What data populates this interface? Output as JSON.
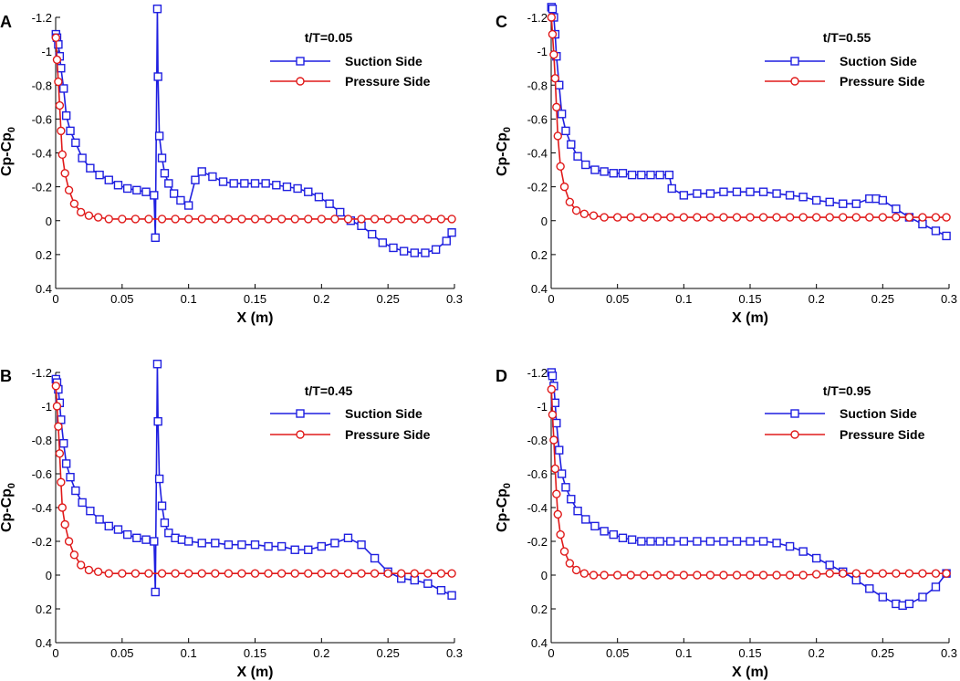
{
  "figure": {
    "series_styles": [
      {
        "key": "suction",
        "color": "#1f1fe0",
        "marker": "square"
      },
      {
        "key": "pressure",
        "color": "#e01a1a",
        "marker": "circle"
      }
    ]
  },
  "chart_data": [
    {
      "type": "line",
      "panel": "A",
      "title": "t/T=0.05",
      "xlabel": "X (m)",
      "ylabel": "Cp-Cp",
      "ylabel_sub": "0",
      "xlim": [
        0,
        0.3
      ],
      "ylim": [
        0.4,
        -1.2
      ],
      "xticks": [
        0,
        0.05,
        0.1,
        0.15,
        0.2,
        0.25,
        0.3
      ],
      "xtick_labels": [
        "0",
        "0.05",
        "0.1",
        "0.15",
        "0.2",
        "0.25",
        "0.3"
      ],
      "yticks": [
        -1.2,
        -1,
        -0.8,
        -0.6,
        -0.4,
        -0.2,
        0,
        0.2,
        0.4
      ],
      "ytick_labels": [
        "-1.2",
        "-1",
        "-0.8",
        "-0.6",
        "-0.4",
        "-0.2",
        "0",
        "0.2",
        "0.4"
      ],
      "series": [
        {
          "name": "Suction Side",
          "x": [
            0.0002,
            0.001,
            0.002,
            0.003,
            0.004,
            0.006,
            0.008,
            0.011,
            0.015,
            0.02,
            0.026,
            0.033,
            0.04,
            0.047,
            0.054,
            0.061,
            0.068,
            0.074,
            0.075,
            0.0765,
            0.077,
            0.078,
            0.08,
            0.082,
            0.085,
            0.089,
            0.094,
            0.1,
            0.105,
            0.11,
            0.118,
            0.126,
            0.134,
            0.142,
            0.15,
            0.158,
            0.166,
            0.174,
            0.182,
            0.19,
            0.198,
            0.206,
            0.214,
            0.222,
            0.23,
            0.238,
            0.246,
            0.254,
            0.262,
            0.27,
            0.278,
            0.286,
            0.294,
            0.298
          ],
          "y": [
            -1.1,
            -1.08,
            -1.04,
            -0.97,
            -0.9,
            -0.78,
            -0.62,
            -0.53,
            -0.46,
            -0.37,
            -0.31,
            -0.27,
            -0.24,
            -0.21,
            -0.19,
            -0.18,
            -0.17,
            -0.15,
            0.1,
            -1.25,
            -0.85,
            -0.5,
            -0.37,
            -0.28,
            -0.22,
            -0.16,
            -0.12,
            -0.09,
            -0.24,
            -0.29,
            -0.26,
            -0.23,
            -0.22,
            -0.22,
            -0.22,
            -0.22,
            -0.21,
            -0.2,
            -0.19,
            -0.17,
            -0.14,
            -0.1,
            -0.05,
            0.0,
            0.03,
            0.08,
            0.13,
            0.16,
            0.18,
            0.19,
            0.19,
            0.17,
            0.12,
            0.07
          ]
        },
        {
          "name": "Pressure Side",
          "x": [
            0.0002,
            0.001,
            0.002,
            0.003,
            0.004,
            0.005,
            0.007,
            0.01,
            0.014,
            0.019,
            0.025,
            0.032,
            0.04,
            0.05,
            0.06,
            0.07,
            0.08,
            0.09,
            0.1,
            0.11,
            0.12,
            0.13,
            0.14,
            0.15,
            0.16,
            0.17,
            0.18,
            0.19,
            0.2,
            0.21,
            0.22,
            0.23,
            0.24,
            0.25,
            0.26,
            0.27,
            0.28,
            0.29,
            0.298
          ],
          "y": [
            -1.08,
            -0.95,
            -0.82,
            -0.68,
            -0.53,
            -0.39,
            -0.28,
            -0.18,
            -0.1,
            -0.05,
            -0.03,
            -0.02,
            -0.01,
            -0.01,
            -0.01,
            -0.01,
            -0.01,
            -0.01,
            -0.01,
            -0.01,
            -0.01,
            -0.01,
            -0.01,
            -0.01,
            -0.01,
            -0.01,
            -0.01,
            -0.01,
            -0.01,
            -0.01,
            -0.01,
            -0.01,
            -0.01,
            -0.01,
            -0.01,
            -0.01,
            -0.01,
            -0.01,
            -0.01
          ]
        }
      ]
    },
    {
      "type": "line",
      "panel": "C",
      "title": "t/T=0.55",
      "xlabel": "X (m)",
      "ylabel": "Cp-Cp",
      "ylabel_sub": "0",
      "xlim": [
        0,
        0.3
      ],
      "ylim": [
        0.4,
        -1.2
      ],
      "xticks": [
        0,
        0.05,
        0.1,
        0.15,
        0.2,
        0.25,
        0.3
      ],
      "xtick_labels": [
        "0",
        "0.05",
        "0.1",
        "0.15",
        "0.2",
        "0.25",
        "0.3"
      ],
      "yticks": [
        -1.2,
        -1,
        -0.8,
        -0.6,
        -0.4,
        -0.2,
        0,
        0.2,
        0.4
      ],
      "ytick_labels": [
        "-1.2",
        "-1",
        "-0.8",
        "-0.6",
        "-0.4",
        "-0.2",
        "0",
        "0.2",
        "0.4"
      ],
      "series": [
        {
          "name": "Suction Side",
          "x": [
            0.0002,
            0.001,
            0.002,
            0.003,
            0.004,
            0.006,
            0.008,
            0.011,
            0.015,
            0.02,
            0.026,
            0.033,
            0.04,
            0.047,
            0.054,
            0.061,
            0.068,
            0.075,
            0.082,
            0.089,
            0.091,
            0.1,
            0.11,
            0.12,
            0.13,
            0.14,
            0.15,
            0.16,
            0.17,
            0.18,
            0.19,
            0.2,
            0.21,
            0.22,
            0.23,
            0.24,
            0.245,
            0.25,
            0.26,
            0.27,
            0.28,
            0.29,
            0.298
          ],
          "y": [
            -1.26,
            -1.25,
            -1.2,
            -1.1,
            -0.97,
            -0.8,
            -0.63,
            -0.53,
            -0.45,
            -0.38,
            -0.33,
            -0.3,
            -0.29,
            -0.28,
            -0.28,
            -0.27,
            -0.27,
            -0.27,
            -0.27,
            -0.27,
            -0.19,
            -0.15,
            -0.16,
            -0.16,
            -0.17,
            -0.17,
            -0.17,
            -0.17,
            -0.16,
            -0.15,
            -0.14,
            -0.12,
            -0.11,
            -0.1,
            -0.1,
            -0.13,
            -0.13,
            -0.12,
            -0.07,
            -0.02,
            0.02,
            0.06,
            0.09
          ]
        },
        {
          "name": "Pressure Side",
          "x": [
            0.0002,
            0.001,
            0.002,
            0.003,
            0.004,
            0.005,
            0.007,
            0.01,
            0.014,
            0.019,
            0.025,
            0.032,
            0.04,
            0.05,
            0.06,
            0.07,
            0.08,
            0.09,
            0.1,
            0.11,
            0.12,
            0.13,
            0.14,
            0.15,
            0.16,
            0.17,
            0.18,
            0.19,
            0.2,
            0.21,
            0.22,
            0.23,
            0.24,
            0.25,
            0.26,
            0.27,
            0.28,
            0.29,
            0.298
          ],
          "y": [
            -1.2,
            -1.1,
            -0.98,
            -0.84,
            -0.67,
            -0.5,
            -0.32,
            -0.2,
            -0.11,
            -0.06,
            -0.04,
            -0.03,
            -0.02,
            -0.02,
            -0.02,
            -0.02,
            -0.02,
            -0.02,
            -0.02,
            -0.02,
            -0.02,
            -0.02,
            -0.02,
            -0.02,
            -0.02,
            -0.02,
            -0.02,
            -0.02,
            -0.02,
            -0.02,
            -0.02,
            -0.02,
            -0.02,
            -0.02,
            -0.02,
            -0.02,
            -0.02,
            -0.02,
            -0.02
          ]
        }
      ]
    },
    {
      "type": "line",
      "panel": "B",
      "title": "t/T=0.45",
      "xlabel": "X (m)",
      "ylabel": "Cp-Cp",
      "ylabel_sub": "0",
      "xlim": [
        0,
        0.3
      ],
      "ylim": [
        0.4,
        -1.2
      ],
      "xticks": [
        0,
        0.05,
        0.1,
        0.15,
        0.2,
        0.25,
        0.3
      ],
      "xtick_labels": [
        "0",
        "0.05",
        "0.1",
        "0.15",
        "0.2",
        "0.25",
        "0.3"
      ],
      "yticks": [
        -1.2,
        -1,
        -0.8,
        -0.6,
        -0.4,
        -0.2,
        0,
        0.2,
        0.4
      ],
      "ytick_labels": [
        "-1.2",
        "-1",
        "-0.8",
        "-0.6",
        "-0.4",
        "-0.2",
        "0",
        "0.2",
        "0.4"
      ],
      "series": [
        {
          "name": "Suction Side",
          "x": [
            0.0002,
            0.001,
            0.002,
            0.003,
            0.004,
            0.006,
            0.008,
            0.011,
            0.015,
            0.02,
            0.026,
            0.033,
            0.04,
            0.047,
            0.054,
            0.061,
            0.068,
            0.074,
            0.075,
            0.0765,
            0.077,
            0.078,
            0.08,
            0.082,
            0.085,
            0.09,
            0.095,
            0.1,
            0.11,
            0.12,
            0.13,
            0.14,
            0.15,
            0.16,
            0.17,
            0.18,
            0.19,
            0.2,
            0.21,
            0.22,
            0.23,
            0.24,
            0.25,
            0.26,
            0.27,
            0.28,
            0.29,
            0.298
          ],
          "y": [
            -1.16,
            -1.14,
            -1.1,
            -1.02,
            -0.92,
            -0.78,
            -0.66,
            -0.58,
            -0.5,
            -0.43,
            -0.38,
            -0.33,
            -0.29,
            -0.27,
            -0.24,
            -0.22,
            -0.21,
            -0.2,
            0.1,
            -1.25,
            -0.91,
            -0.57,
            -0.41,
            -0.31,
            -0.25,
            -0.22,
            -0.21,
            -0.2,
            -0.19,
            -0.19,
            -0.18,
            -0.18,
            -0.18,
            -0.17,
            -0.17,
            -0.15,
            -0.15,
            -0.17,
            -0.19,
            -0.22,
            -0.18,
            -0.1,
            -0.02,
            0.02,
            0.03,
            0.05,
            0.09,
            0.12
          ]
        },
        {
          "name": "Pressure Side",
          "x": [
            0.0002,
            0.001,
            0.002,
            0.003,
            0.004,
            0.005,
            0.007,
            0.01,
            0.014,
            0.019,
            0.025,
            0.032,
            0.04,
            0.05,
            0.06,
            0.07,
            0.08,
            0.09,
            0.1,
            0.11,
            0.12,
            0.13,
            0.14,
            0.15,
            0.16,
            0.17,
            0.18,
            0.19,
            0.2,
            0.21,
            0.22,
            0.23,
            0.24,
            0.25,
            0.26,
            0.27,
            0.28,
            0.29,
            0.298
          ],
          "y": [
            -1.12,
            -1.0,
            -0.88,
            -0.72,
            -0.55,
            -0.4,
            -0.3,
            -0.2,
            -0.12,
            -0.06,
            -0.03,
            -0.02,
            -0.01,
            -0.01,
            -0.01,
            -0.01,
            -0.01,
            -0.01,
            -0.01,
            -0.01,
            -0.01,
            -0.01,
            -0.01,
            -0.01,
            -0.01,
            -0.01,
            -0.01,
            -0.01,
            -0.01,
            -0.01,
            -0.01,
            -0.01,
            -0.01,
            -0.01,
            -0.01,
            -0.01,
            -0.01,
            -0.01,
            -0.01
          ]
        }
      ]
    },
    {
      "type": "line",
      "panel": "D",
      "title": "t/T=0.95",
      "xlabel": "X (m)",
      "ylabel": "Cp-Cp",
      "ylabel_sub": "0",
      "xlim": [
        0,
        0.3
      ],
      "ylim": [
        0.4,
        -1.2
      ],
      "xticks": [
        0,
        0.05,
        0.1,
        0.15,
        0.2,
        0.25,
        0.3
      ],
      "xtick_labels": [
        "0",
        "0.05",
        "0.1",
        "0.15",
        "0.2",
        "0.25",
        "0.3"
      ],
      "yticks": [
        -1.2,
        -1,
        -0.8,
        -0.6,
        -0.4,
        -0.2,
        0,
        0.2,
        0.4
      ],
      "ytick_labels": [
        "-1.2",
        "-1",
        "-0.8",
        "-0.6",
        "-0.4",
        "-0.2",
        "0",
        "0.2",
        "0.4"
      ],
      "series": [
        {
          "name": "Suction Side",
          "x": [
            0.0002,
            0.001,
            0.002,
            0.003,
            0.004,
            0.006,
            0.008,
            0.011,
            0.015,
            0.02,
            0.026,
            0.033,
            0.04,
            0.047,
            0.054,
            0.061,
            0.068,
            0.075,
            0.082,
            0.09,
            0.1,
            0.11,
            0.12,
            0.13,
            0.14,
            0.15,
            0.16,
            0.17,
            0.18,
            0.19,
            0.2,
            0.21,
            0.22,
            0.23,
            0.24,
            0.25,
            0.26,
            0.265,
            0.27,
            0.28,
            0.29,
            0.298
          ],
          "y": [
            -1.2,
            -1.18,
            -1.12,
            -1.02,
            -0.9,
            -0.74,
            -0.6,
            -0.52,
            -0.45,
            -0.38,
            -0.33,
            -0.29,
            -0.26,
            -0.24,
            -0.22,
            -0.21,
            -0.2,
            -0.2,
            -0.2,
            -0.2,
            -0.2,
            -0.2,
            -0.2,
            -0.2,
            -0.2,
            -0.2,
            -0.2,
            -0.19,
            -0.17,
            -0.14,
            -0.1,
            -0.06,
            -0.02,
            0.03,
            0.08,
            0.13,
            0.17,
            0.18,
            0.17,
            0.13,
            0.07,
            -0.01
          ]
        },
        {
          "name": "Pressure Side",
          "x": [
            0.0002,
            0.001,
            0.002,
            0.003,
            0.004,
            0.005,
            0.007,
            0.01,
            0.014,
            0.019,
            0.025,
            0.032,
            0.04,
            0.05,
            0.06,
            0.07,
            0.08,
            0.09,
            0.1,
            0.11,
            0.12,
            0.13,
            0.14,
            0.15,
            0.16,
            0.17,
            0.18,
            0.19,
            0.2,
            0.21,
            0.22,
            0.23,
            0.24,
            0.25,
            0.26,
            0.27,
            0.28,
            0.29,
            0.298
          ],
          "y": [
            -1.1,
            -0.95,
            -0.8,
            -0.63,
            -0.48,
            -0.36,
            -0.24,
            -0.14,
            -0.07,
            -0.03,
            -0.01,
            0.0,
            0.0,
            0.0,
            0.0,
            0.0,
            0.0,
            0.0,
            0.0,
            0.0,
            0.0,
            0.0,
            0.0,
            0.0,
            0.0,
            0.0,
            0.0,
            0.0,
            -0.005,
            -0.01,
            -0.01,
            -0.01,
            -0.01,
            -0.01,
            -0.01,
            -0.01,
            -0.01,
            -0.01,
            -0.01
          ]
        }
      ]
    }
  ]
}
